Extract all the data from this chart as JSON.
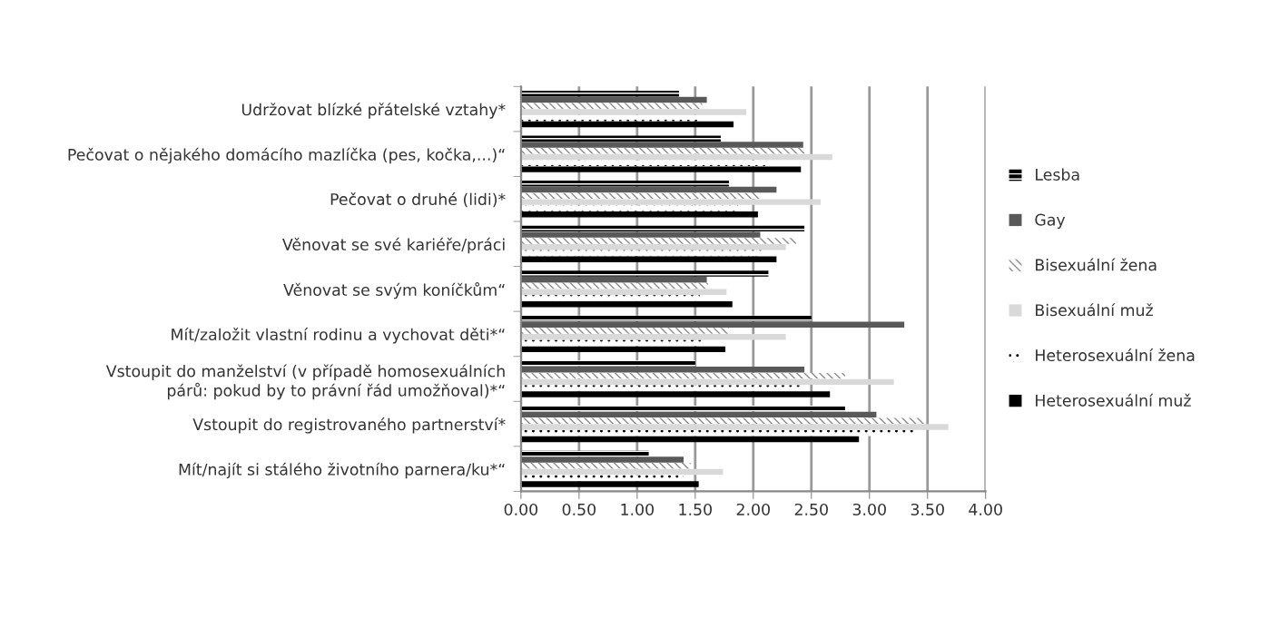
{
  "chart_data": {
    "type": "bar",
    "orientation": "horizontal",
    "categories": [
      "Udržovat blízké přátelské vztahy*",
      "Pečovat o nějakého domácího mazlíčka (pes, kočka,...)“",
      "Pečovat o druhé (lidi)*",
      "Věnovat se své kariéře/práci",
      "Věnovat se svým koníčkům“",
      "Mít/založit vlastní rodinu a vychovat děti*“",
      "Vstoupit do manželství (v případě homosexuálních\npárů: pokud by to právní řád umožňoval)*“",
      "Vstoupit do registrovaného partnerství*",
      "Mít/najít si stálého životního parnera/ku*“"
    ],
    "series": [
      {
        "name": "Lesba",
        "color": "#000000",
        "values": [
          1.36,
          1.72,
          1.79,
          2.44,
          2.13,
          2.5,
          1.5,
          2.79,
          1.1
        ]
      },
      {
        "name": "Gay",
        "color": "#595959",
        "values": [
          1.6,
          2.43,
          2.2,
          2.06,
          1.6,
          3.3,
          2.44,
          3.06,
          1.4
        ]
      },
      {
        "name": "Bisexuální žena",
        "color": "#8c8c8c",
        "values": [
          1.56,
          2.44,
          2.06,
          2.37,
          1.61,
          1.79,
          2.79,
          3.47,
          1.46
        ]
      },
      {
        "name": "Bisexuální muž",
        "color": "#d9d9d9",
        "values": [
          1.94,
          2.68,
          2.58,
          2.28,
          1.77,
          2.28,
          3.21,
          3.68,
          1.74
        ]
      },
      {
        "name": "Heterosexuální žena",
        "color": "#000000",
        "values": [
          1.55,
          2.14,
          1.87,
          2.07,
          1.54,
          1.55,
          2.4,
          3.4,
          1.4
        ]
      },
      {
        "name": "Heterosexuální muž",
        "color": "#000000",
        "values": [
          1.83,
          2.41,
          2.04,
          2.2,
          1.82,
          1.76,
          2.66,
          2.91,
          1.53
        ]
      }
    ],
    "xlim": [
      0,
      4
    ],
    "xticks": [
      {
        "value": 0,
        "label": "0.00"
      },
      {
        "value": 0.5,
        "label": "0.50"
      },
      {
        "value": 1,
        "label": "1.00"
      },
      {
        "value": 1.5,
        "label": "1.50"
      },
      {
        "value": 2,
        "label": "2.00"
      },
      {
        "value": 2.5,
        "label": "2.50"
      },
      {
        "value": 3,
        "label": "3.00"
      },
      {
        "value": 3.5,
        "label": "3.50"
      },
      {
        "value": 4,
        "label": "4.00"
      }
    ],
    "grid": "x",
    "legend": "right"
  }
}
